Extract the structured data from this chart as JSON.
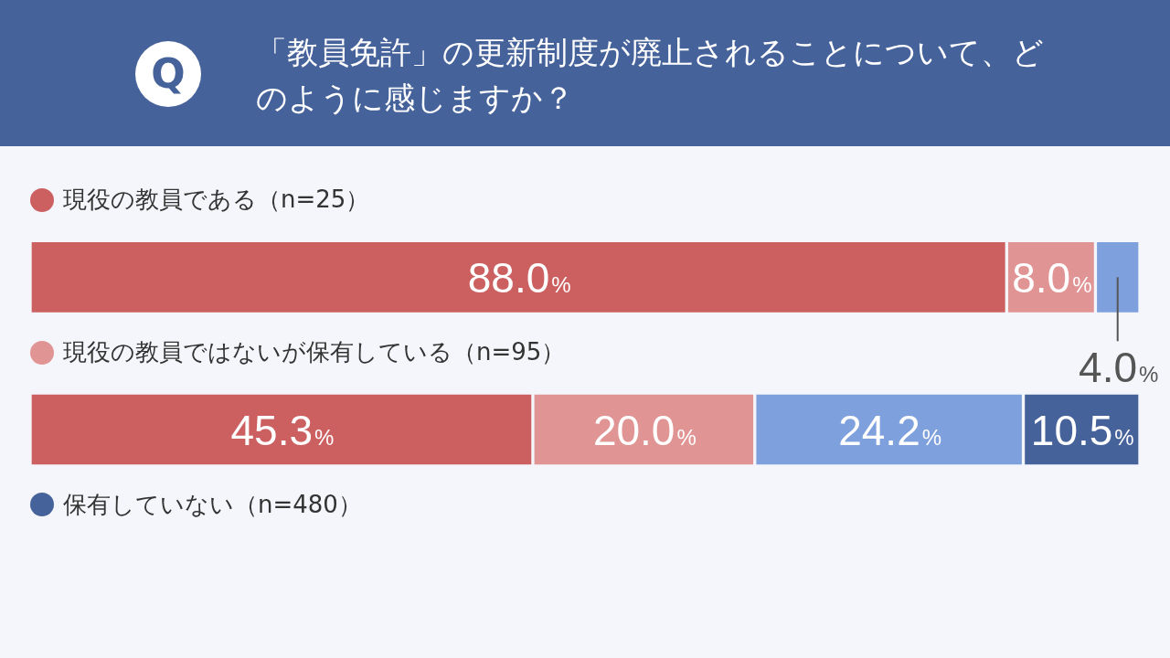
{
  "chart_data": {
    "type": "bar",
    "orientation": "horizontal",
    "stacked": true,
    "title": "「教員免許」の更新制度が廃止されることについて、どのように感じますか？",
    "annotations": [
      "Q"
    ],
    "categories": [
      "現役の教員である（n=25）",
      "現役の教員ではないが保有している（n=95）",
      "保有していない（n=480）"
    ],
    "series": [
      {
        "color": "#cc6060",
        "values": [
          88.0,
          45.3,
          null
        ],
        "value_labels": [
          "88.0%",
          "45.3%",
          null
        ]
      },
      {
        "color": "#e09494",
        "values": [
          8.0,
          20.0,
          null
        ],
        "value_labels": [
          "8.0%",
          "20.0%",
          null
        ]
      },
      {
        "color": "#7ea0dc",
        "values": [
          4.0,
          24.2,
          null
        ],
        "value_labels": [
          "4.0%",
          "24.2%",
          null
        ]
      },
      {
        "color": "#46629a",
        "values": [
          0,
          10.5,
          null
        ],
        "value_labels": [
          null,
          "10.5%",
          null
        ]
      }
    ],
    "xlim": [
      0,
      100
    ],
    "tick_labels": false,
    "legend": false
  }
}
